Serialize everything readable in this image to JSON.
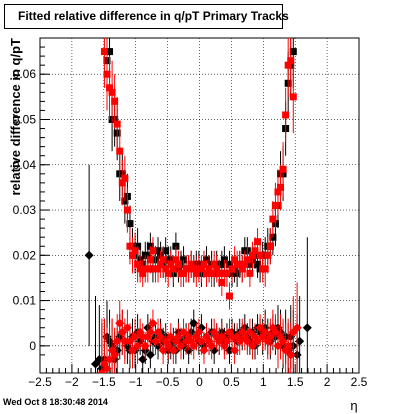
{
  "title": "Fitted relative difference in q/pT  Primary Tracks",
  "footer": "Wed Oct  8 18:30:48 2014",
  "chart_data": {
    "type": "scatter",
    "xlabel": "η",
    "ylabel": "relative difference in q/pT",
    "xlim": [
      -2.5,
      2.5
    ],
    "ylim": [
      -0.006,
      0.068
    ],
    "xticks": [
      -2.5,
      -2,
      -1.5,
      -1,
      -0.5,
      0,
      0.5,
      1,
      1.5,
      2,
      2.5
    ],
    "xtick_labels": [
      "−2.5",
      "−2",
      "−1.5",
      "−1",
      "−0.5",
      "0",
      "0.5",
      "1",
      "1.5",
      "2",
      "2.5"
    ],
    "yticks": [
      0,
      0.01,
      0.02,
      0.03,
      0.04,
      0.05,
      0.06
    ],
    "ytick_labels": [
      "0",
      "0.01",
      "0.02",
      "0.03",
      "0.04",
      "0.05",
      "0.06"
    ],
    "grid": true,
    "series": [
      {
        "marker": "square",
        "color": "#000000",
        "x": [
          -1.45,
          -1.41,
          -1.37,
          -1.33,
          -1.29,
          -1.25,
          -1.21,
          -1.17,
          -1.13,
          -1.09,
          -1.05,
          -1.01,
          -0.97,
          -0.93,
          -0.89,
          -0.85,
          -0.81,
          -0.77,
          -0.73,
          -0.69,
          -0.65,
          -0.61,
          -0.57,
          -0.53,
          -0.49,
          -0.45,
          -0.41,
          -0.37,
          -0.33,
          -0.29,
          -0.25,
          -0.21,
          -0.17,
          -0.13,
          -0.09,
          -0.05,
          -0.01,
          0.03,
          0.07,
          0.11,
          0.15,
          0.19,
          0.23,
          0.27,
          0.31,
          0.35,
          0.39,
          0.43,
          0.47,
          0.51,
          0.55,
          0.59,
          0.63,
          0.67,
          0.71,
          0.75,
          0.79,
          0.83,
          0.87,
          0.91,
          0.95,
          0.99,
          1.03,
          1.07,
          1.11,
          1.15,
          1.19,
          1.23,
          1.27,
          1.31,
          1.35,
          1.39,
          1.43,
          1.47
        ],
        "y": [
          0.063,
          0.065,
          0.05,
          0.05,
          0.047,
          0.038,
          0.038,
          0.032,
          0.033,
          0.027,
          0.022,
          0.02,
          0.022,
          0.019,
          0.018,
          0.02,
          0.02,
          0.022,
          0.017,
          0.019,
          0.021,
          0.02,
          0.018,
          0.021,
          0.019,
          0.019,
          0.016,
          0.022,
          0.017,
          0.018,
          0.019,
          0.017,
          0.017,
          0.018,
          0.017,
          0.018,
          0.018,
          0.016,
          0.018,
          0.019,
          0.017,
          0.018,
          0.016,
          0.018,
          0.016,
          0.018,
          0.019,
          0.016,
          0.018,
          0.016,
          0.017,
          0.016,
          0.018,
          0.017,
          0.021,
          0.021,
          0.018,
          0.019,
          0.02,
          0.018,
          0.017,
          0.02,
          0.02,
          0.022,
          0.022,
          0.024,
          0.027,
          0.031,
          0.038,
          0.038,
          0.048,
          0.058,
          0.062,
          0.065
        ],
        "err": [
          0.008,
          0.007,
          0.007,
          0.006,
          0.006,
          0.006,
          0.005,
          0.005,
          0.005,
          0.004,
          0.004,
          0.004,
          0.004,
          0.003,
          0.003,
          0.003,
          0.003,
          0.003,
          0.003,
          0.003,
          0.003,
          0.003,
          0.003,
          0.003,
          0.003,
          0.003,
          0.003,
          0.003,
          0.003,
          0.003,
          0.003,
          0.003,
          0.003,
          0.003,
          0.003,
          0.003,
          0.003,
          0.003,
          0.003,
          0.003,
          0.003,
          0.003,
          0.003,
          0.003,
          0.003,
          0.003,
          0.003,
          0.003,
          0.003,
          0.003,
          0.003,
          0.003,
          0.003,
          0.003,
          0.003,
          0.003,
          0.003,
          0.003,
          0.003,
          0.003,
          0.003,
          0.003,
          0.004,
          0.004,
          0.004,
          0.004,
          0.005,
          0.005,
          0.005,
          0.006,
          0.006,
          0.007,
          0.007,
          0.008
        ]
      },
      {
        "marker": "square",
        "color": "#ff0000",
        "x": [
          -1.49,
          -1.45,
          -1.41,
          -1.37,
          -1.33,
          -1.29,
          -1.25,
          -1.21,
          -1.17,
          -1.13,
          -1.09,
          -1.05,
          -1.01,
          -0.97,
          -0.93,
          -0.89,
          -0.85,
          -0.81,
          -0.77,
          -0.73,
          -0.69,
          -0.65,
          -0.61,
          -0.57,
          -0.53,
          -0.49,
          -0.45,
          -0.41,
          -0.37,
          -0.33,
          -0.29,
          -0.25,
          -0.21,
          -0.17,
          -0.13,
          -0.09,
          -0.05,
          -0.01,
          0.03,
          0.07,
          0.11,
          0.15,
          0.19,
          0.23,
          0.27,
          0.31,
          0.35,
          0.39,
          0.43,
          0.47,
          0.51,
          0.55,
          0.59,
          0.63,
          0.67,
          0.71,
          0.75,
          0.79,
          0.83,
          0.87,
          0.91,
          0.95,
          0.99,
          1.03,
          1.07,
          1.11,
          1.15,
          1.19,
          1.23,
          1.27,
          1.31,
          1.35,
          1.39,
          1.43,
          1.47
        ],
        "y": [
          0.065,
          0.06,
          0.057,
          0.056,
          0.054,
          0.049,
          0.043,
          0.036,
          0.037,
          0.03,
          0.022,
          0.02,
          0.021,
          0.018,
          0.017,
          0.016,
          0.017,
          0.017,
          0.019,
          0.021,
          0.017,
          0.017,
          0.018,
          0.019,
          0.017,
          0.016,
          0.018,
          0.017,
          0.019,
          0.018,
          0.016,
          0.016,
          0.017,
          0.017,
          0.018,
          0.017,
          0.016,
          0.017,
          0.017,
          0.018,
          0.016,
          0.017,
          0.016,
          0.018,
          0.017,
          0.016,
          0.014,
          0.016,
          0.016,
          0.011,
          0.017,
          0.019,
          0.018,
          0.018,
          0.017,
          0.018,
          0.019,
          0.016,
          0.02,
          0.021,
          0.023,
          0.02,
          0.017,
          0.017,
          0.02,
          0.022,
          0.028,
          0.031,
          0.034,
          0.035,
          0.039,
          0.051,
          0.062,
          0.063,
          0.055
        ],
        "err": [
          0.008,
          0.008,
          0.007,
          0.007,
          0.006,
          0.006,
          0.006,
          0.005,
          0.005,
          0.005,
          0.004,
          0.004,
          0.004,
          0.004,
          0.003,
          0.003,
          0.003,
          0.003,
          0.003,
          0.003,
          0.003,
          0.003,
          0.003,
          0.003,
          0.003,
          0.003,
          0.003,
          0.003,
          0.003,
          0.003,
          0.003,
          0.003,
          0.003,
          0.003,
          0.003,
          0.003,
          0.003,
          0.003,
          0.003,
          0.003,
          0.003,
          0.003,
          0.003,
          0.003,
          0.003,
          0.003,
          0.003,
          0.003,
          0.003,
          0.003,
          0.003,
          0.003,
          0.003,
          0.003,
          0.003,
          0.003,
          0.003,
          0.003,
          0.003,
          0.003,
          0.003,
          0.003,
          0.003,
          0.004,
          0.004,
          0.004,
          0.004,
          0.005,
          0.005,
          0.005,
          0.006,
          0.006,
          0.007,
          0.007,
          0.008
        ]
      },
      {
        "marker": "diamond",
        "color": "#000000",
        "x": [
          -1.73,
          -1.63,
          -1.57,
          -1.53,
          -1.49,
          -1.45,
          -1.41,
          -1.37,
          -1.33,
          -1.29,
          -1.25,
          -1.21,
          -1.17,
          -1.13,
          -1.09,
          -1.05,
          -1.01,
          -0.97,
          -0.93,
          -0.89,
          -0.85,
          -0.81,
          -0.77,
          -0.73,
          -0.69,
          -0.65,
          -0.61,
          -0.57,
          -0.53,
          -0.49,
          -0.45,
          -0.41,
          -0.37,
          -0.33,
          -0.29,
          -0.25,
          -0.21,
          -0.17,
          -0.13,
          -0.09,
          -0.05,
          -0.01,
          0.03,
          0.07,
          0.11,
          0.15,
          0.19,
          0.23,
          0.27,
          0.31,
          0.35,
          0.39,
          0.43,
          0.47,
          0.51,
          0.55,
          0.59,
          0.63,
          0.67,
          0.71,
          0.75,
          0.79,
          0.83,
          0.87,
          0.91,
          0.95,
          0.99,
          1.03,
          1.07,
          1.11,
          1.15,
          1.19,
          1.23,
          1.27,
          1.31,
          1.35,
          1.39,
          1.43,
          1.47,
          1.53,
          1.57,
          1.69
        ],
        "y": [
          0.02,
          -0.004,
          -0.003,
          -0.005,
          -0.003,
          0.002,
          0.001,
          0.0,
          -0.003,
          -0.001,
          0.002,
          0.003,
          0.001,
          0.0,
          -0.001,
          0.002,
          -0.001,
          0.003,
          0.001,
          -0.003,
          -0.001,
          0.004,
          -0.002,
          0.001,
          0.002,
          0.0,
          0.003,
          0.001,
          0.002,
          -0.001,
          0.0,
          0.001,
          -0.001,
          0.003,
          0.001,
          0.0,
          0.002,
          -0.001,
          0.003,
          0.005,
          0.002,
          0.001,
          0.004,
          0.0,
          0.002,
          0.001,
          0.003,
          -0.001,
          0.002,
          0.001,
          0.003,
          0.001,
          0.002,
          -0.001,
          0.003,
          0.002,
          0.001,
          0.003,
          0.002,
          0.004,
          0.002,
          0.001,
          0.003,
          0.0,
          0.004,
          0.003,
          0.002,
          0.004,
          0.002,
          0.001,
          0.003,
          0.002,
          0.004,
          0.003,
          0.0,
          0.002,
          -0.001,
          0.002,
          0.0,
          -0.002,
          0.001,
          0.004
        ],
        "err": [
          0.02,
          0.015,
          0.012,
          0.01,
          0.009,
          0.008,
          0.007,
          0.006,
          0.006,
          0.005,
          0.005,
          0.005,
          0.004,
          0.004,
          0.004,
          0.004,
          0.004,
          0.004,
          0.003,
          0.003,
          0.003,
          0.003,
          0.003,
          0.003,
          0.003,
          0.003,
          0.003,
          0.003,
          0.003,
          0.003,
          0.003,
          0.003,
          0.003,
          0.003,
          0.003,
          0.003,
          0.003,
          0.003,
          0.003,
          0.003,
          0.003,
          0.003,
          0.003,
          0.003,
          0.003,
          0.003,
          0.003,
          0.003,
          0.003,
          0.003,
          0.003,
          0.003,
          0.003,
          0.003,
          0.003,
          0.003,
          0.003,
          0.003,
          0.003,
          0.003,
          0.003,
          0.003,
          0.003,
          0.003,
          0.003,
          0.003,
          0.004,
          0.004,
          0.004,
          0.004,
          0.004,
          0.004,
          0.005,
          0.005,
          0.005,
          0.006,
          0.006,
          0.007,
          0.008,
          0.009,
          0.01,
          0.02
        ]
      },
      {
        "marker": "diamond",
        "color": "#ff0000",
        "x": [
          -1.53,
          -1.49,
          -1.45,
          -1.41,
          -1.37,
          -1.33,
          -1.29,
          -1.25,
          -1.21,
          -1.17,
          -1.13,
          -1.09,
          -1.05,
          -1.01,
          -0.97,
          -0.93,
          -0.89,
          -0.85,
          -0.81,
          -0.77,
          -0.73,
          -0.69,
          -0.65,
          -0.61,
          -0.57,
          -0.53,
          -0.49,
          -0.45,
          -0.41,
          -0.37,
          -0.33,
          -0.29,
          -0.25,
          -0.21,
          -0.17,
          -0.13,
          -0.09,
          -0.05,
          -0.01,
          0.03,
          0.07,
          0.11,
          0.15,
          0.19,
          0.23,
          0.27,
          0.31,
          0.35,
          0.39,
          0.43,
          0.47,
          0.51,
          0.55,
          0.59,
          0.63,
          0.67,
          0.71,
          0.75,
          0.79,
          0.83,
          0.87,
          0.91,
          0.95,
          0.99,
          1.03,
          1.07,
          1.11,
          1.15,
          1.19,
          1.23,
          1.27,
          1.31,
          1.35,
          1.39,
          1.43,
          1.47,
          1.53
        ],
        "y": [
          -0.006,
          -0.004,
          -0.005,
          -0.003,
          -0.001,
          -0.002,
          0.001,
          0.005,
          0.003,
          0.001,
          0.004,
          0.001,
          -0.001,
          0.002,
          0.0,
          0.003,
          0.002,
          0.0,
          0.002,
          0.003,
          0.005,
          0.001,
          0.003,
          0.002,
          -0.001,
          0.001,
          0.0,
          0.002,
          -0.001,
          0.001,
          0.002,
          0.0,
          0.003,
          0.001,
          0.002,
          0.001,
          0.0,
          0.002,
          0.003,
          0.001,
          -0.001,
          0.002,
          0.001,
          0.0,
          0.003,
          0.002,
          0.001,
          0.002,
          0.0,
          0.001,
          0.003,
          0.002,
          -0.001,
          0.002,
          0.001,
          0.003,
          0.002,
          0.001,
          0.003,
          0.0,
          0.002,
          0.001,
          0.004,
          0.002,
          0.003,
          0.001,
          0.002,
          0.004,
          0.003,
          0.0,
          0.002,
          0.001,
          -0.001,
          0.0,
          -0.002,
          0.003,
          0.004
        ],
        "err": [
          0.012,
          0.01,
          0.009,
          0.008,
          0.007,
          0.006,
          0.006,
          0.005,
          0.005,
          0.005,
          0.004,
          0.004,
          0.004,
          0.004,
          0.004,
          0.003,
          0.003,
          0.003,
          0.003,
          0.003,
          0.003,
          0.003,
          0.003,
          0.003,
          0.003,
          0.003,
          0.003,
          0.003,
          0.003,
          0.003,
          0.003,
          0.003,
          0.003,
          0.003,
          0.003,
          0.003,
          0.003,
          0.003,
          0.003,
          0.003,
          0.003,
          0.003,
          0.003,
          0.003,
          0.003,
          0.003,
          0.003,
          0.003,
          0.003,
          0.003,
          0.003,
          0.003,
          0.003,
          0.003,
          0.003,
          0.003,
          0.003,
          0.003,
          0.003,
          0.003,
          0.003,
          0.003,
          0.003,
          0.003,
          0.004,
          0.004,
          0.004,
          0.004,
          0.004,
          0.005,
          0.005,
          0.005,
          0.006,
          0.006,
          0.007,
          0.008,
          0.01
        ]
      }
    ]
  }
}
